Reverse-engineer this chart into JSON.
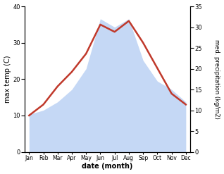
{
  "months": [
    "Jan",
    "Feb",
    "Mar",
    "Apr",
    "May",
    "Jun",
    "Jul",
    "Aug",
    "Sep",
    "Oct",
    "Nov",
    "Dec"
  ],
  "max_temp": [
    10,
    13,
    18,
    22,
    27,
    35,
    33,
    36,
    30,
    23,
    16,
    13
  ],
  "precipitation": [
    9,
    10,
    12,
    15,
    20,
    32,
    30,
    32,
    22,
    17,
    15,
    12
  ],
  "temp_color": "#c0392b",
  "precip_fill_color": "#c5d8f5",
  "temp_ylim": [
    0,
    40
  ],
  "precip_ylim": [
    0,
    35
  ],
  "temp_yticks": [
    0,
    10,
    20,
    30,
    40
  ],
  "precip_yticks": [
    0,
    5,
    10,
    15,
    20,
    25,
    30,
    35
  ],
  "xlabel": "date (month)",
  "ylabel_left": "max temp (C)",
  "ylabel_right": "med. precipitation (kg/m2)",
  "line_width": 1.8
}
